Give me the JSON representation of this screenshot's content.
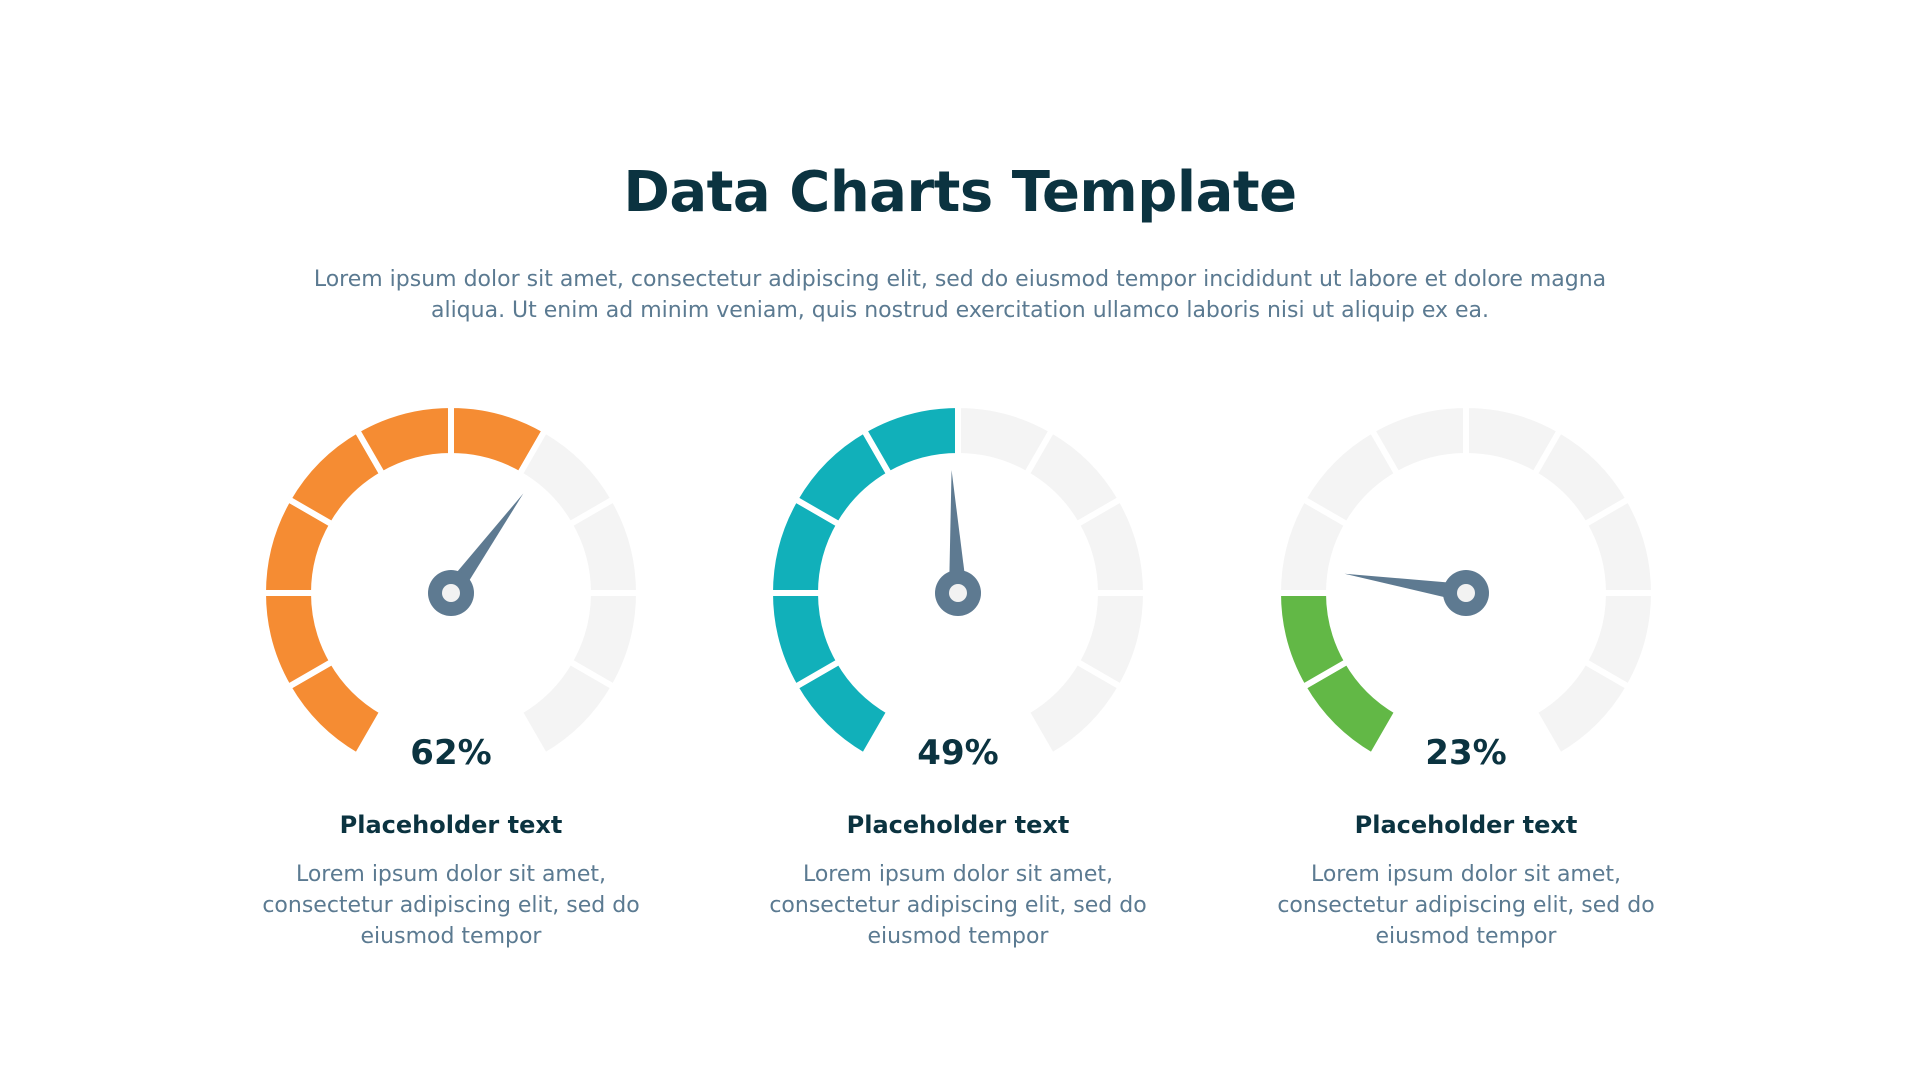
{
  "header": {
    "title": "Data Charts Template",
    "description": "Lorem ipsum dolor sit amet, consectetur adipiscing elit, sed do eiusmod tempor incididunt ut labore et dolore magna aliqua. Ut enim ad minim veniam, quis nostrud exercitation ullamco laboris nisi ut aliquip ex ea."
  },
  "chart_data": [
    {
      "type": "gauge",
      "value": 62,
      "unit": "%",
      "value_label": "62%",
      "color": "#F58C33",
      "segments": 10,
      "label": "Placeholder text",
      "text": "Lorem ipsum dolor sit amet, consectetur adipiscing elit, sed do eiusmod tempor"
    },
    {
      "type": "gauge",
      "value": 49,
      "unit": "%",
      "value_label": "49%",
      "color": "#11B0BA",
      "segments": 10,
      "label": "Placeholder text",
      "text": "Lorem ipsum dolor sit amet, consectetur adipiscing elit, sed do eiusmod tempor"
    },
    {
      "type": "gauge",
      "value": 23,
      "unit": "%",
      "value_label": "23%",
      "color": "#62B846",
      "segments": 10,
      "label": "Placeholder text",
      "text": "Lorem ipsum dolor sit amet, consectetur adipiscing elit, sed do eiusmod tempor"
    }
  ],
  "colors": {
    "track": "#F4F4F4",
    "needle": "#5E7A91",
    "title": "#0B3340",
    "body": "#5B7A91"
  }
}
